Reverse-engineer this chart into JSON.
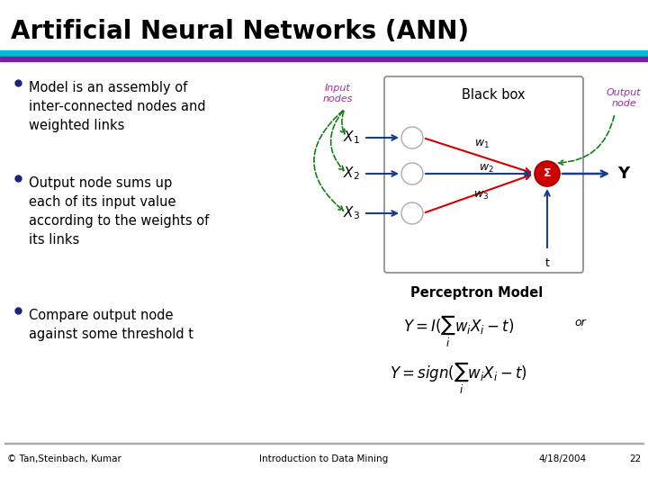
{
  "title": "Artificial Neural Networks (ANN)",
  "title_fontsize": 20,
  "title_fontweight": "bold",
  "bg_color": "#ffffff",
  "header_bar1_color": "#00bcd4",
  "header_bar2_color": "#7b1fa2",
  "bullet_color": "#1a237e",
  "bullet1": "Model is an assembly of\ninter-connected nodes and\nweighted links",
  "bullet2": "Output node sums up\neach of its input value\naccording to the weights of\nits links",
  "bullet3": "Compare output node\nagainst some threshold t",
  "perceptron_label": "Perceptron Model",
  "footer_left": "© Tan,Steinbach, Kumar",
  "footer_center": "Introduction to Data Mining",
  "footer_right": "4/18/2004",
  "footer_page": "22",
  "input_nodes_label": "Input\nnodes",
  "black_box_label": "Black box",
  "output_node_label": "Output\nnode",
  "x1_label": "$X_1$",
  "x2_label": "$X_2$",
  "x3_label": "$X_3$",
  "w1_label": "$w_1$",
  "w2_label": "$w_2$",
  "w3_label": "$w_3$",
  "y_label": "Y",
  "t_label": "t",
  "sigma_label": "Σ",
  "formula1": "$Y = I(\\sum_i w_i X_i - t)$",
  "formula2": "$Y = sign(\\sum_i w_i X_i - t)$",
  "or_text": "or",
  "node_color": "#ffffff",
  "node_edge_color": "#aaaaaa",
  "output_node_fill": "#cc0000",
  "arrow_blue": "#1a3a8a",
  "arrow_red": "#cc0000",
  "arrow_green": "#1a7a1a",
  "box_edge_color": "#888888",
  "text_purple": "#993399",
  "text_black": "#000000"
}
